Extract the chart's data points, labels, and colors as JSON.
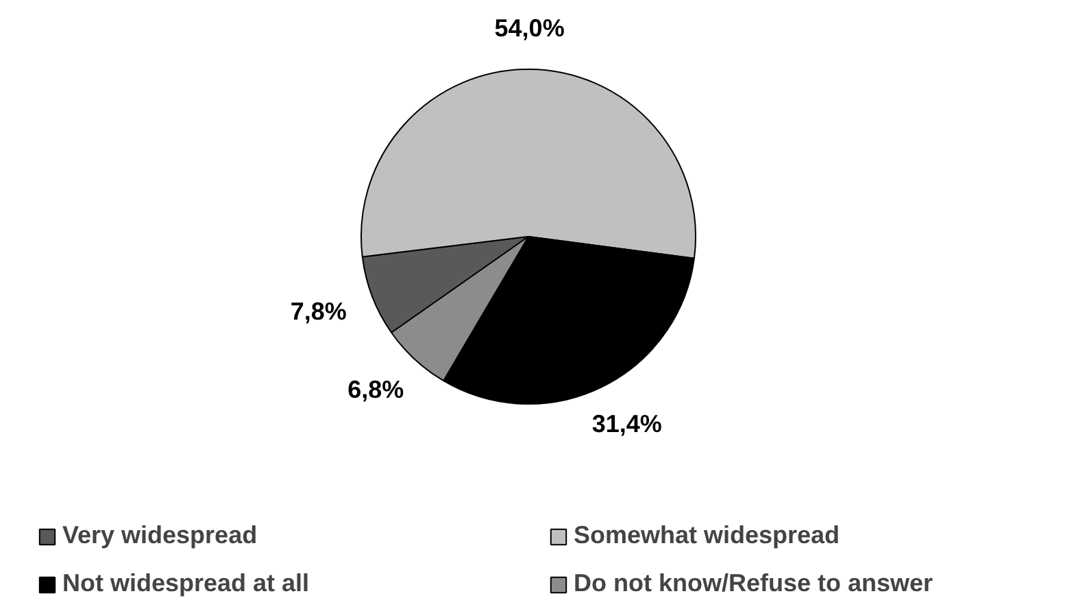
{
  "chart_data": {
    "type": "pie",
    "categories": [
      "Very widespread",
      "Somewhat widespread",
      "Not widespread at all",
      "Do not know/Refuse to answer"
    ],
    "values": [
      7.8,
      54.0,
      31.4,
      6.8
    ],
    "colors": [
      "#595959",
      "#c0c0c0",
      "#000000",
      "#8c8c8c"
    ],
    "value_labels": [
      "7,8%",
      "54,0%",
      "31,4%",
      "6,8%"
    ],
    "legend": "bottom"
  }
}
